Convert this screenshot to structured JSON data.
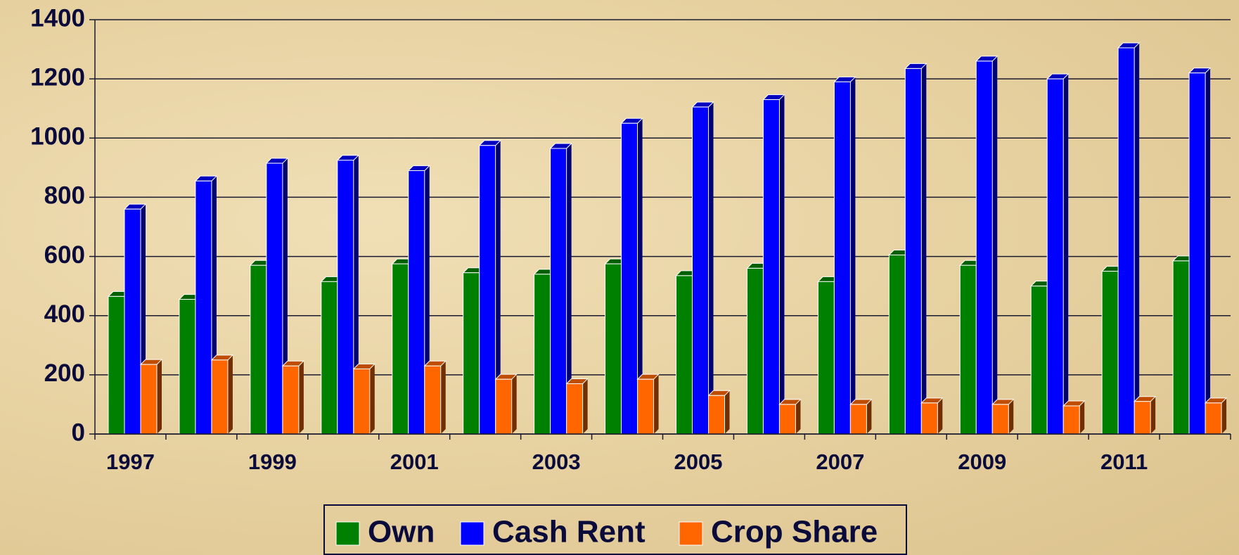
{
  "chart_data": {
    "type": "bar3d",
    "categories": [
      "1997",
      null,
      "1999",
      null,
      "2001",
      null,
      "2003",
      null,
      "2005",
      null,
      "2007",
      null,
      "2009",
      null,
      "2011",
      null
    ],
    "series": [
      {
        "name": "Own",
        "color": "#008000",
        "values": [
          465,
          455,
          570,
          515,
          575,
          545,
          540,
          575,
          535,
          560,
          515,
          605,
          570,
          500,
          550,
          585
        ]
      },
      {
        "name": "Cash Rent",
        "color": "#0000ff",
        "values": [
          760,
          855,
          915,
          925,
          890,
          975,
          965,
          1050,
          1105,
          1130,
          1190,
          1235,
          1260,
          1200,
          1305,
          1220
        ]
      },
      {
        "name": "Crop Share",
        "color": "#ff6600",
        "values": [
          235,
          250,
          230,
          220,
          230,
          185,
          170,
          185,
          130,
          100,
          100,
          105,
          100,
          95,
          110,
          105
        ]
      }
    ],
    "ylim": [
      0,
      1400
    ],
    "yticks": [
      0,
      200,
      400,
      600,
      800,
      1000,
      1200,
      1400
    ],
    "grid": true,
    "legend": "bottom"
  }
}
